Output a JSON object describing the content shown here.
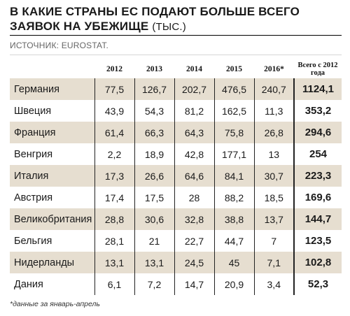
{
  "title": {
    "line1": "В КАКИЕ СТРАНЫ ЕС ПОДАЮТ БОЛЬШЕ ВСЕГО",
    "line2": "ЗАЯВОК НА УБЕЖИЩЕ",
    "unit": "(ТЫС.)"
  },
  "source": "ИСТОЧНИК: EUROSTAT.",
  "columns": [
    "2012",
    "2013",
    "2014",
    "2015",
    "2016*",
    "Всего с 2012 года"
  ],
  "rows": [
    {
      "country": "Германия",
      "values": [
        "77,5",
        "126,7",
        "202,7",
        "476,5",
        "240,7"
      ],
      "total": "1124,1"
    },
    {
      "country": "Швеция",
      "values": [
        "43,9",
        "54,3",
        "81,2",
        "162,5",
        "11,3"
      ],
      "total": "353,2"
    },
    {
      "country": "Франция",
      "values": [
        "61,4",
        "66,3",
        "64,3",
        "75,8",
        "26,8"
      ],
      "total": "294,6"
    },
    {
      "country": "Венгрия",
      "values": [
        "2,2",
        "18,9",
        "42,8",
        "177,1",
        "13"
      ],
      "total": "254"
    },
    {
      "country": "Италия",
      "values": [
        "17,3",
        "26,6",
        "64,6",
        "84,1",
        "30,7"
      ],
      "total": "223,3"
    },
    {
      "country": "Австрия",
      "values": [
        "17,4",
        "17,5",
        "28",
        "88,2",
        "18,5"
      ],
      "total": "169,6"
    },
    {
      "country": "Великобритания",
      "values": [
        "28,8",
        "30,6",
        "32,8",
        "38,8",
        "13,7"
      ],
      "total": "144,7"
    },
    {
      "country": "Бельгия",
      "values": [
        "28,1",
        "21",
        "22,7",
        "44,7",
        "7"
      ],
      "total": "123,5"
    },
    {
      "country": "Нидерланды",
      "values": [
        "13,1",
        "13,1",
        "24,5",
        "45",
        "7,1"
      ],
      "total": "102,8"
    },
    {
      "country": "Дания",
      "values": [
        "6,1",
        "7,2",
        "14,7",
        "20,9",
        "3,4"
      ],
      "total": "52,3"
    }
  ],
  "footnote": "*данные за январь-апрель",
  "colors": {
    "shaded_row": "#e6ded0",
    "rule": "#000000"
  }
}
